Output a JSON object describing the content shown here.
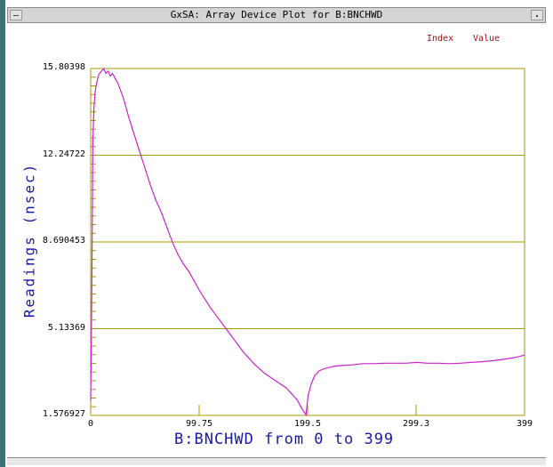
{
  "window": {
    "title": "GxSA: Array Device Plot for B:BNCHWD"
  },
  "legend": {
    "index_label": "Index",
    "value_label": "Value"
  },
  "colors": {
    "trace": "#cc22cc",
    "grid": "#a89b00",
    "axis_text": "#1a1aa8",
    "legend_text": "#a01010",
    "frame": "#3d6f78"
  },
  "chart_data": {
    "type": "line",
    "title": "",
    "xlabel": "B:BNCHWD from 0 to 399",
    "ylabel": "Readings (nsec)",
    "xlim": [
      0,
      399
    ],
    "ylim": [
      1.576927,
      15.80398
    ],
    "x_ticks": [
      "0",
      "99.75",
      "199.5",
      "299.3",
      "399"
    ],
    "y_ticks": [
      "15.80398",
      "12.24722",
      "8.690453",
      "5.13369",
      "1.576927"
    ],
    "grid": true,
    "series": [
      {
        "x": [
          0,
          1,
          2,
          3,
          4,
          5,
          6,
          7,
          8,
          10,
          12,
          14,
          16,
          18,
          20,
          25,
          30,
          35,
          40,
          45,
          50,
          55,
          60,
          65,
          70,
          75,
          80,
          85,
          90,
          95,
          100,
          110,
          120,
          130,
          140,
          150,
          160,
          170,
          180,
          190,
          195,
          198,
          200,
          203,
          206,
          210,
          215,
          220,
          225,
          230,
          240,
          250,
          260,
          270,
          280,
          290,
          300,
          310,
          320,
          330,
          340,
          350,
          360,
          370,
          380,
          390,
          395,
          399
        ],
        "y": [
          2.2,
          6.5,
          12.8,
          14.2,
          14.8,
          15.1,
          15.3,
          15.5,
          15.6,
          15.7,
          15.8,
          15.6,
          15.7,
          15.5,
          15.6,
          15.2,
          14.6,
          13.8,
          13.1,
          12.4,
          11.7,
          11.0,
          10.4,
          9.9,
          9.3,
          8.7,
          8.2,
          7.8,
          7.5,
          7.1,
          6.7,
          6.0,
          5.4,
          4.8,
          4.2,
          3.7,
          3.3,
          3.0,
          2.7,
          2.2,
          1.8,
          1.6,
          2.4,
          2.9,
          3.2,
          3.4,
          3.5,
          3.55,
          3.6,
          3.62,
          3.65,
          3.7,
          3.7,
          3.72,
          3.72,
          3.72,
          3.75,
          3.72,
          3.72,
          3.7,
          3.72,
          3.75,
          3.78,
          3.82,
          3.88,
          3.95,
          4.0,
          4.05
        ]
      }
    ]
  }
}
